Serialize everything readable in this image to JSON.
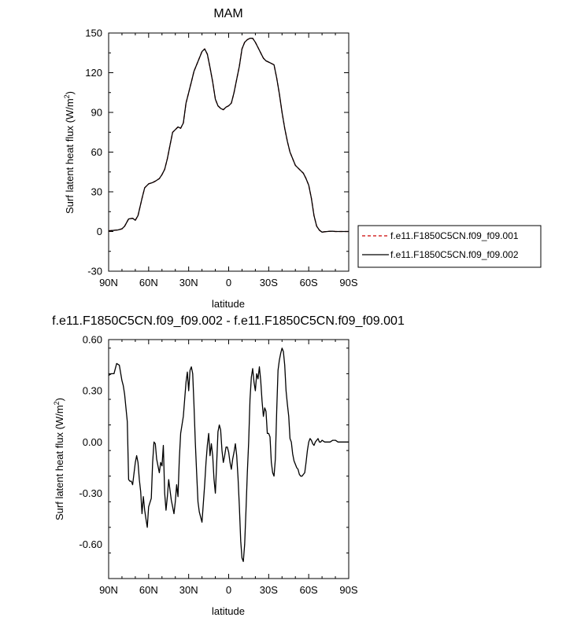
{
  "chart_data": [
    {
      "type": "line",
      "title": "MAM",
      "xlabel": "latitude",
      "ylabel": "Surf latent heat flux (W/m²)",
      "xlim": [
        90,
        -90
      ],
      "ylim": [
        -30,
        150
      ],
      "xtick_values": [
        90,
        60,
        30,
        0,
        -30,
        -60,
        -90
      ],
      "xtick_labels": [
        "90N",
        "60N",
        "30N",
        "0",
        "30S",
        "60S",
        "90S"
      ],
      "ytick_values": [
        -30,
        0,
        30,
        60,
        90,
        120,
        150
      ],
      "ytick_labels": [
        "-30",
        "0",
        "30",
        "60",
        "90",
        "120",
        "150"
      ],
      "legend_position": "right",
      "x": [
        90,
        87,
        83,
        80,
        78,
        75,
        72,
        70,
        68,
        65,
        63,
        60,
        57,
        55,
        52,
        50,
        48,
        46,
        44,
        42,
        40,
        38,
        36,
        34,
        32,
        30,
        28,
        26,
        24,
        22,
        20,
        18,
        16,
        14,
        12,
        10,
        8,
        6,
        4,
        2,
        0,
        -2,
        -4,
        -6,
        -8,
        -10,
        -12,
        -14,
        -16,
        -18,
        -20,
        -22,
        -24,
        -26,
        -28,
        -30,
        -32,
        -34,
        -36,
        -38,
        -40,
        -42,
        -44,
        -46,
        -48,
        -50,
        -52,
        -54,
        -56,
        -58,
        -60,
        -62,
        -64,
        -66,
        -68,
        -70,
        -72,
        -74,
        -76,
        -78,
        -80,
        -83,
        -86,
        -90
      ],
      "series": [
        {
          "name": "f.e11.F1850C5CN.f09_f09.001",
          "color": "#cc0000",
          "dash": "dashed",
          "values": [
            0.5,
            0.8,
            1.2,
            2.0,
            4.0,
            9.5,
            10.0,
            8.5,
            12.0,
            25.0,
            33.0,
            36.0,
            37.0,
            38.0,
            40.0,
            43.0,
            47.0,
            55.0,
            65.0,
            75.0,
            77.0,
            79.0,
            78.0,
            82.0,
            97.0,
            105.0,
            113.0,
            121.0,
            126.0,
            131.0,
            136.0,
            138.0,
            134.0,
            124.0,
            113.0,
            100.0,
            95.0,
            93.0,
            92.0,
            94.0,
            95.0,
            97.0,
            105.0,
            115.0,
            125.0,
            138.0,
            143.0,
            145.0,
            146.0,
            146.0,
            143.0,
            139.0,
            135.0,
            131.0,
            129.0,
            128.0,
            127.0,
            126.0,
            116.0,
            104.0,
            90.0,
            78.0,
            68.0,
            60.0,
            55.0,
            50.0,
            48.0,
            46.0,
            44.0,
            40.0,
            35.0,
            25.0,
            12.0,
            4.0,
            1.0,
            -0.5,
            -0.2,
            0.0,
            0.2,
            0.2,
            0.0,
            0.0,
            0.0,
            0.0
          ]
        },
        {
          "name": "f.e11.F1850C5CN.f09_f09.002",
          "color": "#000000",
          "dash": "solid",
          "values": [
            0.5,
            0.8,
            1.2,
            2.0,
            4.0,
            9.5,
            10.0,
            8.5,
            12.0,
            25.0,
            33.0,
            36.0,
            37.0,
            38.0,
            40.0,
            43.0,
            47.0,
            55.0,
            65.0,
            75.0,
            77.0,
            79.0,
            78.0,
            82.0,
            97.0,
            105.0,
            113.0,
            121.0,
            126.0,
            131.0,
            136.0,
            138.0,
            134.0,
            124.0,
            113.0,
            100.0,
            95.0,
            93.0,
            92.0,
            94.0,
            95.0,
            97.0,
            105.0,
            115.0,
            125.0,
            138.0,
            143.0,
            145.0,
            146.0,
            146.0,
            143.0,
            139.0,
            135.0,
            131.0,
            129.0,
            128.0,
            127.0,
            126.0,
            116.0,
            104.0,
            90.0,
            78.0,
            68.0,
            60.0,
            55.0,
            50.0,
            48.0,
            46.0,
            44.0,
            40.0,
            35.0,
            25.0,
            12.0,
            4.0,
            1.0,
            -0.5,
            -0.2,
            0.0,
            0.2,
            0.2,
            0.0,
            0.0,
            0.0,
            0.0
          ]
        }
      ]
    },
    {
      "type": "line",
      "title": "f.e11.F1850C5CN.f09_f09.002 - f.e11.F1850C5CN.f09_f09.001",
      "xlabel": "latitude",
      "ylabel": "Surf latent heat flux (W/m²)",
      "xlim": [
        90,
        -90
      ],
      "ylim": [
        -0.8,
        0.6
      ],
      "xtick_values": [
        90,
        60,
        30,
        0,
        -30,
        -60,
        -90
      ],
      "xtick_labels": [
        "90N",
        "60N",
        "30N",
        "0",
        "30S",
        "60S",
        "90S"
      ],
      "ytick_values": [
        0.6,
        0.3,
        0.0,
        -0.3,
        -0.6
      ],
      "ytick_labels": [
        "0.60",
        "0.30",
        "0.00",
        "-0.30",
        "-0.60"
      ],
      "x": [
        90,
        88,
        86,
        84,
        82,
        80,
        79,
        78,
        76,
        75,
        74,
        73,
        72,
        70,
        69,
        68,
        67,
        66,
        65,
        64,
        63,
        62,
        61,
        60,
        58,
        57,
        56,
        55,
        54,
        53,
        52,
        51,
        50,
        49,
        48,
        47,
        46,
        45,
        44,
        43,
        42,
        41,
        40,
        39,
        38,
        37,
        36,
        34,
        32,
        31,
        30,
        29,
        28,
        27,
        26,
        25,
        24,
        23,
        22,
        21,
        20,
        18,
        17,
        16,
        15,
        14,
        13,
        12,
        11,
        10,
        9,
        8,
        7,
        6,
        5,
        4,
        3,
        2,
        1,
        0,
        -1,
        -2,
        -3,
        -4,
        -5,
        -6,
        -7,
        -8,
        -9,
        -10,
        -11,
        -12,
        -13,
        -14,
        -15,
        -16,
        -17,
        -18,
        -19,
        -20,
        -21,
        -22,
        -23,
        -24,
        -25,
        -26,
        -27,
        -28,
        -29,
        -30,
        -31,
        -32,
        -33,
        -34,
        -35,
        -36,
        -37,
        -38,
        -39,
        -40,
        -41,
        -42,
        -43,
        -44,
        -45,
        -46,
        -47,
        -48,
        -49,
        -50,
        -51,
        -52,
        -53,
        -54,
        -55,
        -56,
        -57,
        -58,
        -59,
        -60,
        -61,
        -62,
        -63,
        -64,
        -65,
        -66,
        -67,
        -68,
        -69,
        -70,
        -72,
        -74,
        -76,
        -78,
        -80,
        -82,
        -84,
        -86,
        -88,
        -90
      ],
      "series": [
        {
          "name": "",
          "color": "#000000",
          "values": [
            0.39,
            0.4,
            0.4,
            0.46,
            0.45,
            0.36,
            0.33,
            0.28,
            0.12,
            -0.22,
            -0.23,
            -0.23,
            -0.25,
            -0.12,
            -0.08,
            -0.12,
            -0.22,
            -0.29,
            -0.42,
            -0.32,
            -0.4,
            -0.45,
            -0.5,
            -0.38,
            -0.33,
            -0.12,
            0.0,
            -0.01,
            -0.1,
            -0.14,
            -0.18,
            -0.12,
            -0.14,
            -0.02,
            -0.3,
            -0.4,
            -0.32,
            -0.22,
            -0.28,
            -0.34,
            -0.38,
            -0.42,
            -0.35,
            -0.25,
            -0.32,
            -0.1,
            0.05,
            0.15,
            0.35,
            0.41,
            0.3,
            0.42,
            0.44,
            0.4,
            0.22,
            0.0,
            -0.18,
            -0.35,
            -0.41,
            -0.44,
            -0.47,
            -0.25,
            -0.12,
            -0.02,
            0.05,
            -0.08,
            -0.01,
            -0.08,
            -0.22,
            -0.3,
            -0.12,
            0.06,
            0.1,
            0.07,
            -0.05,
            -0.12,
            -0.08,
            -0.03,
            -0.03,
            -0.06,
            -0.12,
            -0.16,
            -0.1,
            -0.06,
            -0.01,
            -0.08,
            -0.21,
            -0.38,
            -0.58,
            -0.68,
            -0.7,
            -0.6,
            -0.4,
            -0.18,
            0.0,
            0.25,
            0.38,
            0.43,
            0.35,
            0.3,
            0.4,
            0.37,
            0.44,
            0.36,
            0.24,
            0.15,
            0.2,
            0.18,
            0.05,
            0.05,
            0.03,
            -0.12,
            -0.18,
            -0.2,
            -0.1,
            0.18,
            0.42,
            0.48,
            0.52,
            0.55,
            0.53,
            0.45,
            0.3,
            0.22,
            0.15,
            0.02,
            0.0,
            -0.07,
            -0.11,
            -0.13,
            -0.15,
            -0.16,
            -0.19,
            -0.2,
            -0.2,
            -0.19,
            -0.18,
            -0.12,
            -0.05,
            0.0,
            0.02,
            0.01,
            -0.01,
            -0.02,
            0.0,
            0.01,
            0.02,
            0.0,
            0.0,
            0.01,
            0.0,
            0.0,
            0.0,
            0.01,
            0.01,
            0.0,
            0.0,
            0.0,
            0.0,
            0.0
          ]
        }
      ]
    }
  ]
}
